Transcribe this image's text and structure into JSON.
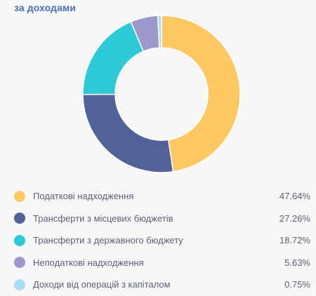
{
  "header": {
    "title": "за доходами"
  },
  "chart_data": {
    "type": "pie",
    "donut": true,
    "unit": "%",
    "categories": [
      "Податкові надходження",
      "Трансферти з місцевих бюджетів",
      "Трансферти з державного бюджету",
      "Неподаткові надходження",
      "Доходи від операцій з капіталом"
    ],
    "values": [
      47.64,
      27.26,
      18.72,
      5.63,
      0.75
    ],
    "value_labels": [
      "47.64%",
      "27.26%",
      "18.72%",
      "5.63%",
      "0.75%"
    ],
    "colors": [
      "#fec863",
      "#516298",
      "#2dc9d6",
      "#9c98cb",
      "#a6dff7"
    ],
    "legend": "bottom"
  }
}
